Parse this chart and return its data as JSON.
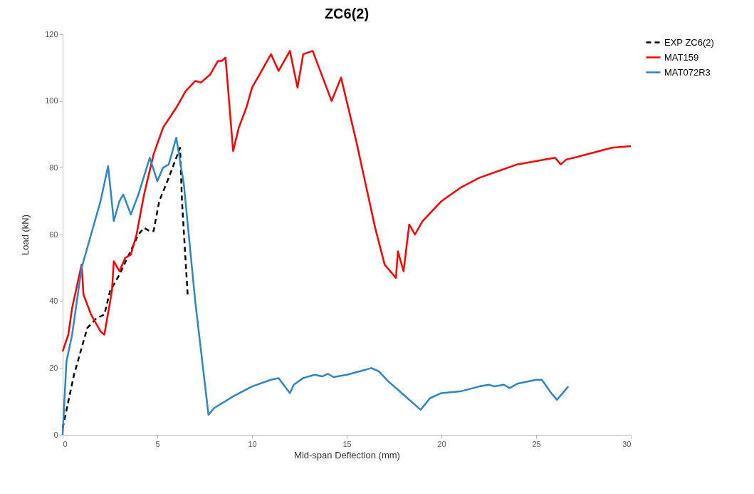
{
  "chart_data": {
    "type": "line",
    "title": "ZC6(2)",
    "xlabel": "Mid-span Deflection (mm)",
    "ylabel": "Load (kN)",
    "xlim": [
      0,
      30
    ],
    "xticks": [
      0,
      5,
      10,
      15,
      20,
      25,
      30
    ],
    "ylim": [
      0,
      120
    ],
    "yticks": [
      0,
      20,
      40,
      60,
      80,
      100,
      120
    ],
    "grid": false,
    "legend": "right",
    "marker": "none",
    "series": [
      {
        "name": "EXP ZC6(2)",
        "color": "#000000",
        "line_style": "dashed",
        "x": [
          0,
          0.3,
          0.6,
          1.0,
          1.3,
          1.8,
          2.2,
          2.5,
          3.0,
          3.5,
          4.0,
          4.3,
          4.6,
          4.8,
          5.1,
          5.6,
          6.0,
          6.2,
          6.3,
          6.6
        ],
        "values": [
          2,
          10,
          18,
          26,
          32,
          35,
          36,
          43,
          48,
          54,
          60,
          62,
          61,
          61,
          70,
          77,
          83,
          86,
          70,
          42
        ]
      },
      {
        "name": "MAT159",
        "color": "#ff0000",
        "line_style": "solid",
        "x": [
          0,
          0.3,
          0.5,
          1.0,
          1.1,
          1.5,
          2.0,
          2.2,
          2.6,
          2.7,
          3.0,
          3.3,
          3.6,
          3.9,
          4.3,
          4.8,
          5.3,
          6.0,
          6.5,
          7.0,
          7.3,
          7.8,
          8.2,
          8.4,
          8.6,
          9.0,
          9.3,
          9.7,
          10.0,
          10.5,
          11.0,
          11.4,
          12.0,
          12.4,
          12.7,
          13.2,
          14.2,
          14.7,
          15.5,
          16.0,
          16.5,
          17.0,
          17.6,
          17.7,
          18.0,
          18.3,
          18.6,
          19.0,
          20,
          21,
          22,
          23,
          24,
          25,
          26,
          26.3,
          26.6,
          27,
          28,
          29,
          30
        ],
        "values": [
          25,
          30,
          38,
          51,
          42,
          36,
          31,
          30,
          43,
          52,
          49,
          53,
          54,
          60,
          72,
          84,
          92,
          98,
          103,
          106,
          105.5,
          108,
          112,
          112,
          113,
          85,
          92,
          98,
          104,
          109,
          114,
          109,
          115,
          104,
          114,
          115,
          100,
          107,
          88,
          75,
          62,
          51,
          47,
          55,
          49,
          63,
          60,
          64,
          70,
          74,
          77,
          79,
          81,
          82,
          83,
          81,
          82.5,
          83,
          84.5,
          86,
          86.5
        ]
      },
      {
        "name": "MAT072R3",
        "color": "#2e86c8",
        "line_style": "solid",
        "x": [
          0,
          0.2,
          0.5,
          0.8,
          1.0,
          1.5,
          2.0,
          2.4,
          2.7,
          3.0,
          3.2,
          3.6,
          4.0,
          4.6,
          5.0,
          5.3,
          5.6,
          6.0,
          6.4,
          7.0,
          7.7,
          8.0,
          9,
          10,
          11,
          11.4,
          11.8,
          12.0,
          12.2,
          12.7,
          13.3,
          13.7,
          14.0,
          14.3,
          15,
          16,
          16.3,
          16.7,
          17.2,
          18,
          18.9,
          19.4,
          20,
          21,
          22,
          22.5,
          22.8,
          23.3,
          23.6,
          24,
          25,
          25.3,
          25.8,
          26.1,
          26.7
        ],
        "values": [
          0,
          22,
          30,
          42,
          50,
          60,
          70,
          80.5,
          64,
          70,
          72,
          66,
          72,
          83,
          76,
          80,
          81,
          89,
          75,
          40,
          6,
          8,
          11.5,
          14.5,
          16.5,
          17,
          14,
          12.5,
          15,
          17,
          18,
          17.5,
          18.3,
          17.3,
          18,
          19.5,
          20,
          19,
          16,
          12,
          7.5,
          11,
          12.5,
          13,
          14.5,
          15,
          14.5,
          15,
          14,
          15.3,
          16.5,
          16.5,
          12.5,
          10.5,
          14.5
        ]
      }
    ]
  }
}
